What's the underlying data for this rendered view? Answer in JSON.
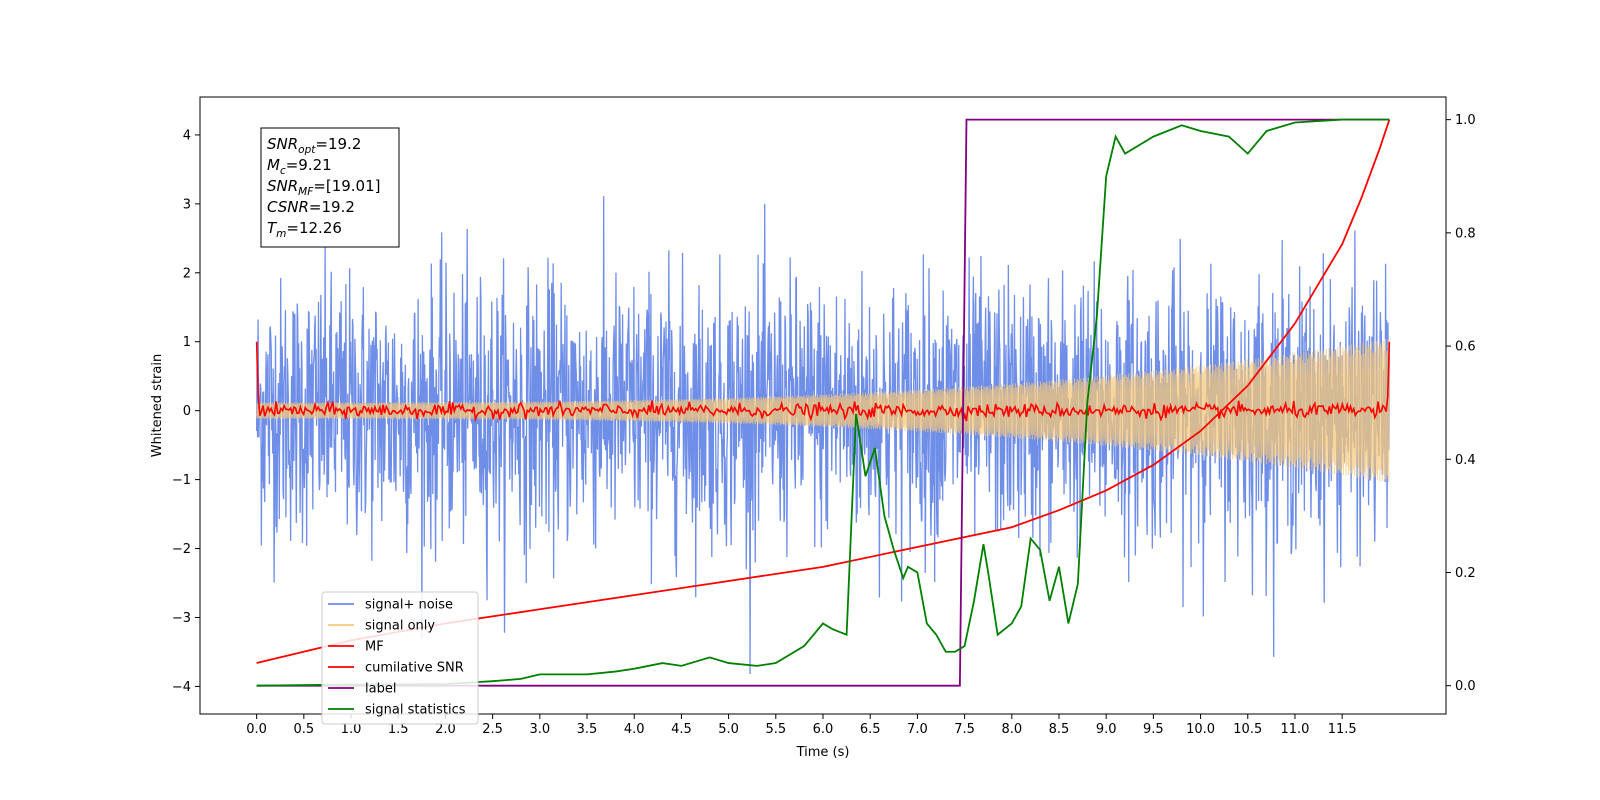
{
  "chart_data": {
    "type": "line",
    "xlabel": "Time (s)",
    "ylabel": "Whitened strain",
    "xlim": [
      -0.6,
      12.6
    ],
    "ylim": [
      -4.4,
      4.55
    ],
    "ylim_right": [
      -0.05,
      1.04
    ],
    "x_ticks": [
      "0.0",
      "0.5",
      "1.0",
      "1.5",
      "2.0",
      "2.5",
      "3.0",
      "3.5",
      "4.0",
      "4.5",
      "5.0",
      "5.5",
      "6.0",
      "6.5",
      "7.0",
      "7.5",
      "8.0",
      "8.5",
      "9.0",
      "9.5",
      "10.0",
      "10.5",
      "11.0",
      "11.5"
    ],
    "y_ticks_left": [
      "−4",
      "−3",
      "−2",
      "−1",
      "0",
      "1",
      "2",
      "3",
      "4"
    ],
    "y_ticks_right": [
      "0.0",
      "0.2",
      "0.4",
      "0.6",
      "0.8",
      "1.0"
    ],
    "annotation": [
      {
        "base": "SNR",
        "sub": "opt",
        "value": "=19.2"
      },
      {
        "base": "M",
        "sub": "c",
        "value": "=9.21"
      },
      {
        "base": "SNR",
        "sub": "MF",
        "value": "=[19.01]"
      },
      {
        "base": "CSNR",
        "sub": "",
        "value": "=19.2"
      },
      {
        "base": "T",
        "sub": "m",
        "value": "=12.26"
      }
    ],
    "legend_position": "lower-left",
    "series": [
      {
        "name": "signal+ noise",
        "color": "#6f8ee8",
        "axis": "left",
        "kind": "noise",
        "x_range": [
          0,
          12
        ],
        "std": 0.95,
        "max": 4.2,
        "min": -4.0
      },
      {
        "name": "signal only",
        "color": "#f5c77a",
        "axis": "left",
        "kind": "chirp",
        "x_range": [
          0,
          12
        ],
        "amp_start": 0.12,
        "amp_end": 1.05
      },
      {
        "name": "MF",
        "color": "#ff0000",
        "axis": "left",
        "kind": "noise",
        "x_range": [
          0,
          12
        ],
        "std": 0.05,
        "edge_values": [
          1.0,
          1.0
        ]
      },
      {
        "name": "cumilative SNR",
        "color": "#ff0000",
        "axis": "right",
        "x": [
          0,
          1,
          2,
          3,
          4,
          5,
          6,
          7,
          8,
          8.5,
          9,
          9.5,
          10,
          10.5,
          11,
          11.5,
          11.7,
          11.9,
          12.0
        ],
        "y": [
          0.04,
          0.08,
          0.11,
          0.135,
          0.16,
          0.185,
          0.21,
          0.245,
          0.28,
          0.31,
          0.345,
          0.39,
          0.45,
          0.53,
          0.64,
          0.78,
          0.86,
          0.95,
          1.0
        ]
      },
      {
        "name": "label",
        "color": "#800080",
        "axis": "right",
        "x": [
          0,
          7.45,
          7.52,
          12.0
        ],
        "y": [
          0.0,
          0.0,
          1.0,
          1.0
        ]
      },
      {
        "name": "signal statistics",
        "color": "#008000",
        "axis": "right",
        "x": [
          0,
          1,
          2,
          2.5,
          2.8,
          3.0,
          3.5,
          3.8,
          4.0,
          4.3,
          4.5,
          4.8,
          5.0,
          5.3,
          5.5,
          5.8,
          6.0,
          6.1,
          6.25,
          6.35,
          6.45,
          6.55,
          6.65,
          6.75,
          6.85,
          6.9,
          7.0,
          7.1,
          7.2,
          7.3,
          7.4,
          7.5,
          7.6,
          7.7,
          7.75,
          7.85,
          8.0,
          8.1,
          8.2,
          8.3,
          8.4,
          8.5,
          8.6,
          8.7,
          8.8,
          8.9,
          9.0,
          9.1,
          9.2,
          9.3,
          9.5,
          9.8,
          10.0,
          10.3,
          10.5,
          10.7,
          11.0,
          11.5,
          12.0
        ],
        "y": [
          0.0,
          0.002,
          0.003,
          0.008,
          0.012,
          0.02,
          0.02,
          0.025,
          0.03,
          0.04,
          0.035,
          0.05,
          0.04,
          0.035,
          0.04,
          0.07,
          0.11,
          0.1,
          0.09,
          0.48,
          0.37,
          0.42,
          0.3,
          0.24,
          0.19,
          0.21,
          0.2,
          0.11,
          0.09,
          0.06,
          0.06,
          0.07,
          0.15,
          0.25,
          0.2,
          0.09,
          0.11,
          0.14,
          0.26,
          0.24,
          0.15,
          0.21,
          0.11,
          0.18,
          0.5,
          0.65,
          0.9,
          0.97,
          0.94,
          0.95,
          0.97,
          0.99,
          0.98,
          0.97,
          0.94,
          0.98,
          0.995,
          1.0,
          1.0
        ]
      }
    ]
  }
}
